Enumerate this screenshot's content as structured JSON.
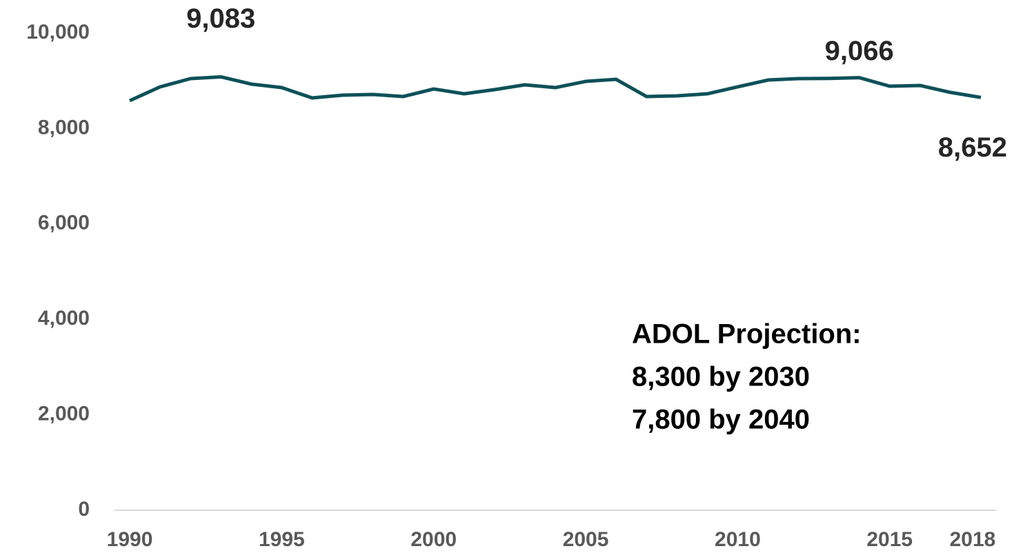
{
  "chart_data": {
    "type": "line",
    "x": [
      1990,
      1991,
      1992,
      1993,
      1994,
      1995,
      1996,
      1997,
      1998,
      1999,
      2000,
      2001,
      2002,
      2003,
      2004,
      2005,
      2006,
      2007,
      2008,
      2009,
      2010,
      2011,
      2012,
      2013,
      2014,
      2015,
      2016,
      2017,
      2018
    ],
    "values": [
      8584,
      8873,
      9046,
      9083,
      8931,
      8858,
      8642,
      8699,
      8714,
      8671,
      8829,
      8728,
      8815,
      8916,
      8858,
      8988,
      9031,
      8671,
      8685,
      8728,
      8873,
      9017,
      9046,
      9050,
      9066,
      8887,
      8902,
      8757,
      8652
    ],
    "value_labels": [
      null,
      null,
      null,
      "9,083",
      null,
      null,
      null,
      null,
      null,
      null,
      null,
      null,
      null,
      null,
      null,
      null,
      null,
      null,
      null,
      null,
      null,
      null,
      null,
      null,
      "9,066",
      null,
      null,
      null,
      "8,652"
    ],
    "color": "#0d5158",
    "xlim": [
      1989.5,
      2018.5
    ],
    "xticks": [
      1990,
      1995,
      2000,
      2005,
      2010,
      2015,
      2018
    ],
    "ylim": [
      0,
      10000
    ],
    "yticks": [
      0,
      {
        "value": 2000,
        "label": "2,000"
      },
      {
        "value": 4000,
        "label": "4,000"
      },
      {
        "value": 6000,
        "label": "6,000"
      },
      {
        "value": 8000,
        "label": "8,000"
      },
      {
        "value": 10000,
        "label": "10,000"
      }
    ],
    "grid": false,
    "annotation": [
      "ADOL Projection:",
      "8,300 by 2030",
      "7,800 by 2040"
    ]
  }
}
